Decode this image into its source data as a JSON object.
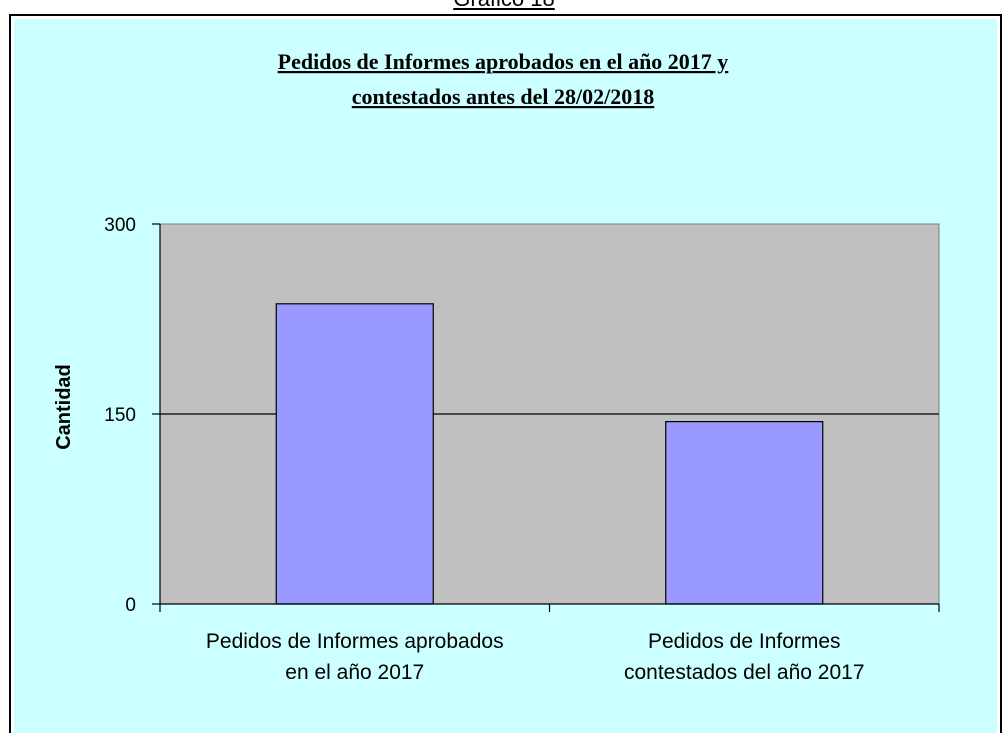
{
  "caption": "Gráfico 18",
  "chart_data": {
    "type": "bar",
    "title_lines": [
      "Pedidos de Informes aprobados en el año 2017 y",
      "contestados antes del 28/02/2018"
    ],
    "ylabel": "Cantidad",
    "xlabel": "",
    "ylim": [
      0,
      300
    ],
    "yticks": [
      0,
      150,
      300
    ],
    "categories": [
      [
        "Pedidos de Informes aprobados",
        "en el año 2017"
      ],
      [
        "Pedidos de Informes",
        "contestados del año 2017"
      ]
    ],
    "values": [
      237,
      144
    ],
    "grid": true,
    "colors": {
      "bar_fill": "#9999ff",
      "plot_bg": "#c0c0c0",
      "chart_bg": "#ccffff"
    }
  }
}
